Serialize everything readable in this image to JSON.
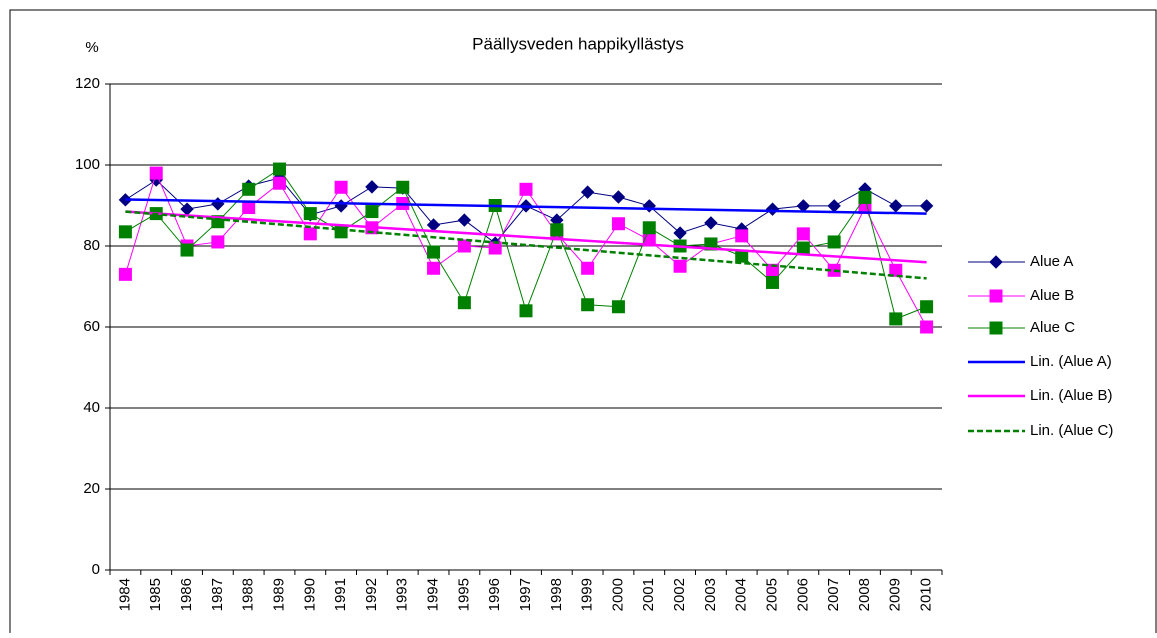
{
  "chart_data": {
    "type": "line",
    "title": "Päällysveden happikyllästys",
    "y_label": "%",
    "categories": [
      "1984",
      "1985",
      "1986",
      "1987",
      "1988",
      "1989",
      "1990",
      "1991",
      "1992",
      "1993",
      "1994",
      "1995",
      "1996",
      "1997",
      "1998",
      "1999",
      "2000",
      "2001",
      "2002",
      "2003",
      "2004",
      "2005",
      "2006",
      "2007",
      "2008",
      "2009",
      "2010"
    ],
    "series": [
      {
        "name": "Alue A",
        "color": "#000080",
        "marker": "diamond",
        "values": [
          91.4,
          96.3,
          89.1,
          90.4,
          94.8,
          96.8,
          87.7,
          89.9,
          94.6,
          94.3,
          85.2,
          86.4,
          80.7,
          89.9,
          86.4,
          93.3,
          92.1,
          89.9,
          83.2,
          85.7,
          84.2,
          89.1,
          89.9,
          89.9,
          94.1,
          89.9,
          89.9
        ]
      },
      {
        "name": "Alue B",
        "color": "#ff00ff",
        "marker": "square",
        "values": [
          73,
          98,
          80,
          81,
          89.5,
          95.5,
          83,
          94.5,
          84.5,
          90.5,
          74.5,
          80,
          79.5,
          94,
          83,
          74.5,
          85.5,
          81.5,
          75,
          80.5,
          82.5,
          74,
          83,
          74,
          89.5,
          74,
          60
        ]
      },
      {
        "name": "Alue C",
        "color": "#008000",
        "marker": "square",
        "values": [
          83.5,
          88,
          79,
          86,
          94,
          99,
          88,
          83.5,
          88.5,
          94.5,
          78.5,
          66,
          90,
          64,
          84,
          65.5,
          65,
          84.5,
          80,
          80.5,
          77.5,
          71,
          79.5,
          81,
          92,
          62,
          65
        ]
      }
    ],
    "trendlines": [
      {
        "name": "Lin. (Alue A)",
        "color": "#0000ff",
        "dashed": false,
        "values": [
          91.5,
          88
        ]
      },
      {
        "name": "Lin. (Alue B)",
        "color": "#ff00ff",
        "dashed": false,
        "values": [
          88.5,
          76
        ]
      },
      {
        "name": "Lin. (Alue C)",
        "color": "#008000",
        "dashed": true,
        "values": [
          88.5,
          72
        ]
      }
    ],
    "ylim": [
      0,
      120
    ],
    "yticks": [
      0,
      20,
      40,
      60,
      80,
      100,
      120
    ],
    "grid": true
  }
}
